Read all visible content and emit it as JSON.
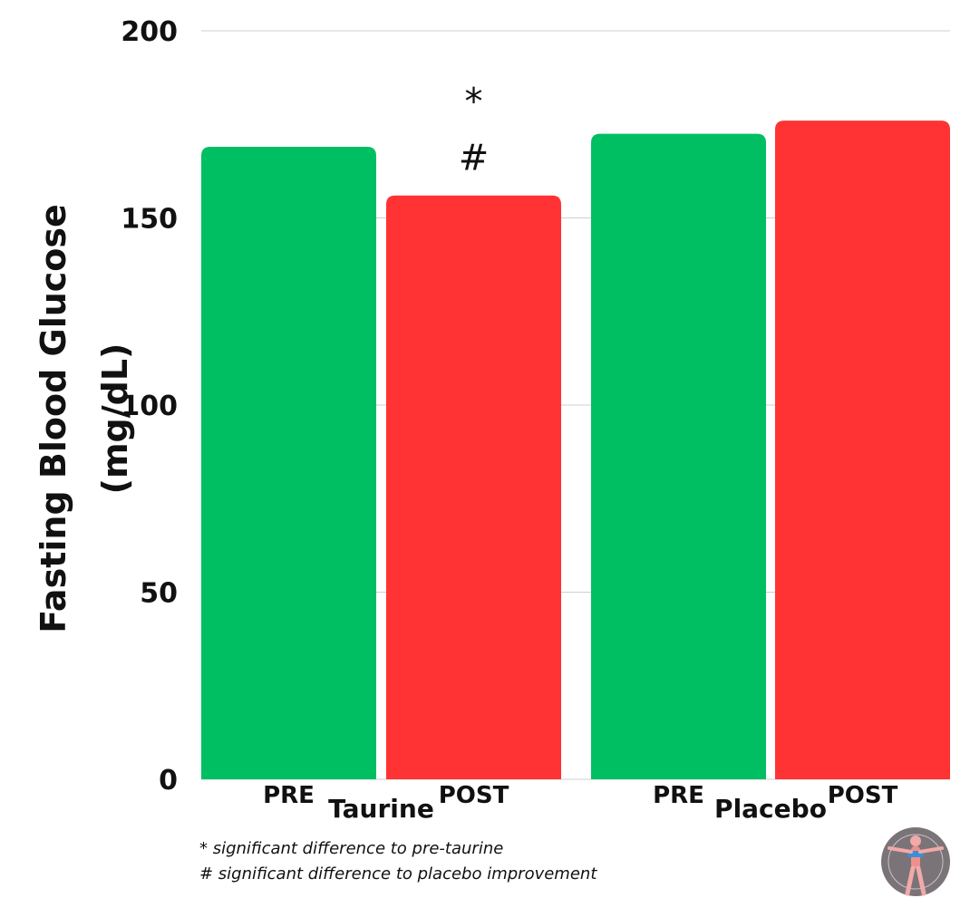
{
  "chart_data": {
    "type": "bar",
    "title": "",
    "ylabel": [
      "Fasting Blood Glucose",
      "(mg/dL)"
    ],
    "ylim": [
      0,
      200
    ],
    "yticks": [
      0,
      50,
      100,
      150,
      200
    ],
    "grid": true,
    "bars": [
      {
        "group": "Taurine",
        "label": "PRE",
        "value": 169,
        "color": "#00bf63",
        "annotations": []
      },
      {
        "group": "Taurine",
        "label": "POST",
        "value": 156,
        "color": "#ff3333",
        "annotations": [
          "*",
          "#"
        ]
      },
      {
        "group": "Placebo",
        "label": "PRE",
        "value": 172.5,
        "color": "#00bf63",
        "annotations": []
      },
      {
        "group": "Placebo",
        "label": "POST",
        "value": 176,
        "color": "#ff3333",
        "annotations": []
      }
    ],
    "groups": [
      "Taurine",
      "Placebo"
    ]
  },
  "footnotes": [
    "* significant difference to pre-taurine",
    "# significant difference to placebo improvement"
  ],
  "logo": {
    "icon": "vitruvian-figure-icon"
  }
}
